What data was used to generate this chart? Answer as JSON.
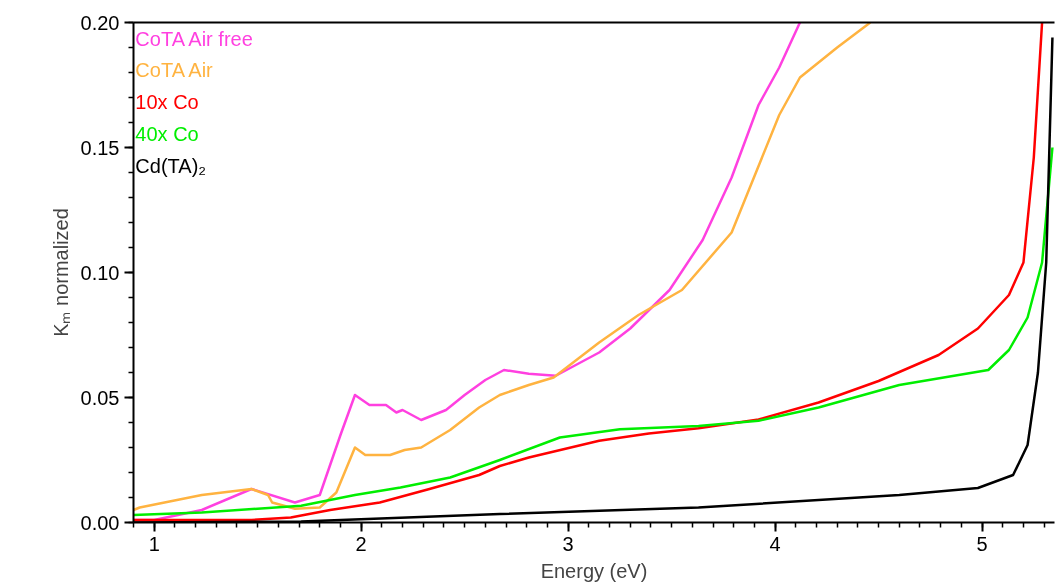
{
  "chart_data": {
    "type": "line",
    "xlabel": "Energy (eV)",
    "ylabel": "Kₘ normalized",
    "xlim": [
      0.9,
      5.35
    ],
    "ylim": [
      0,
      0.2
    ],
    "xticks": [
      1,
      2,
      3,
      4,
      5
    ],
    "yticks": [
      {
        "value": 0,
        "label": "0.00"
      },
      {
        "value": 0.05,
        "label": "0.05"
      },
      {
        "value": 0.1,
        "label": "0.10"
      },
      {
        "value": 0.15,
        "label": "0.15"
      },
      {
        "value": 0.2,
        "label": "0.20"
      }
    ],
    "grid": false,
    "legend": "top left",
    "marker": "none",
    "line_style": "solid",
    "series": [
      {
        "name": "CoTA Air free",
        "color": "#ff40e0",
        "x": [
          0.9,
          1.0,
          1.23,
          1.47,
          1.68,
          1.8,
          1.9,
          1.97,
          2.04,
          2.12,
          2.17,
          2.2,
          2.29,
          2.41,
          2.5,
          2.6,
          2.69,
          2.81,
          2.94,
          3.15,
          3.3,
          3.49,
          3.65,
          3.79,
          3.92,
          4.02,
          4.12
        ],
        "values": [
          0.001,
          0.001,
          0.005,
          0.0134,
          0.008,
          0.011,
          0.035,
          0.051,
          0.047,
          0.047,
          0.044,
          0.045,
          0.041,
          0.045,
          0.051,
          0.057,
          0.061,
          0.0595,
          0.0587,
          0.068,
          0.0776,
          0.093,
          0.113,
          0.138,
          0.167,
          0.182,
          0.2
        ]
      },
      {
        "name": "CoTA Air",
        "color": "#ffb340",
        "x": [
          0.9,
          0.93,
          1.23,
          1.47,
          1.55,
          1.57,
          1.68,
          1.8,
          1.88,
          1.97,
          2.02,
          2.14,
          2.21,
          2.29,
          2.43,
          2.57,
          2.67,
          2.81,
          2.93,
          3.15,
          3.34,
          3.55,
          3.79,
          4.02,
          4.12,
          4.3,
          4.46
        ],
        "values": [
          0.005,
          0.006,
          0.011,
          0.0134,
          0.011,
          0.008,
          0.0055,
          0.006,
          0.012,
          0.03,
          0.027,
          0.027,
          0.029,
          0.03,
          0.037,
          0.046,
          0.051,
          0.055,
          0.058,
          0.072,
          0.083,
          0.093,
          0.116,
          0.163,
          0.178,
          0.19,
          0.2
        ]
      },
      {
        "name": "10x Co",
        "color": "#ff0000",
        "x": [
          0.9,
          1.47,
          1.66,
          1.85,
          2.09,
          2.33,
          2.57,
          2.67,
          2.81,
          3.15,
          3.39,
          3.63,
          3.92,
          4.21,
          4.5,
          4.79,
          4.98,
          5.13,
          5.2,
          5.25,
          5.29
        ],
        "values": [
          0.001,
          0.001,
          0.002,
          0.005,
          0.008,
          0.0134,
          0.019,
          0.0226,
          0.026,
          0.0327,
          0.0356,
          0.0377,
          0.0412,
          0.048,
          0.0566,
          0.067,
          0.0776,
          0.091,
          0.104,
          0.146,
          0.2
        ]
      },
      {
        "name": "40x Co",
        "color": "#00ee00",
        "x": [
          0.9,
          1.23,
          1.71,
          1.97,
          2.19,
          2.43,
          2.67,
          2.96,
          3.25,
          3.63,
          3.92,
          4.21,
          4.6,
          5.03,
          5.13,
          5.22,
          5.29,
          5.34
        ],
        "values": [
          0.003,
          0.004,
          0.0067,
          0.011,
          0.014,
          0.018,
          0.025,
          0.034,
          0.0373,
          0.0386,
          0.0407,
          0.046,
          0.055,
          0.061,
          0.069,
          0.082,
          0.104,
          0.15
        ]
      },
      {
        "name": "Cd(TA)₂",
        "color": "#000000",
        "x": [
          0.9,
          1.71,
          2.67,
          3.63,
          4.6,
          4.98,
          5.15,
          5.22,
          5.27,
          5.31,
          5.34
        ],
        "values": [
          0.0,
          0.0004,
          0.0034,
          0.006,
          0.011,
          0.0138,
          0.019,
          0.031,
          0.06,
          0.104,
          0.194
        ]
      }
    ]
  }
}
